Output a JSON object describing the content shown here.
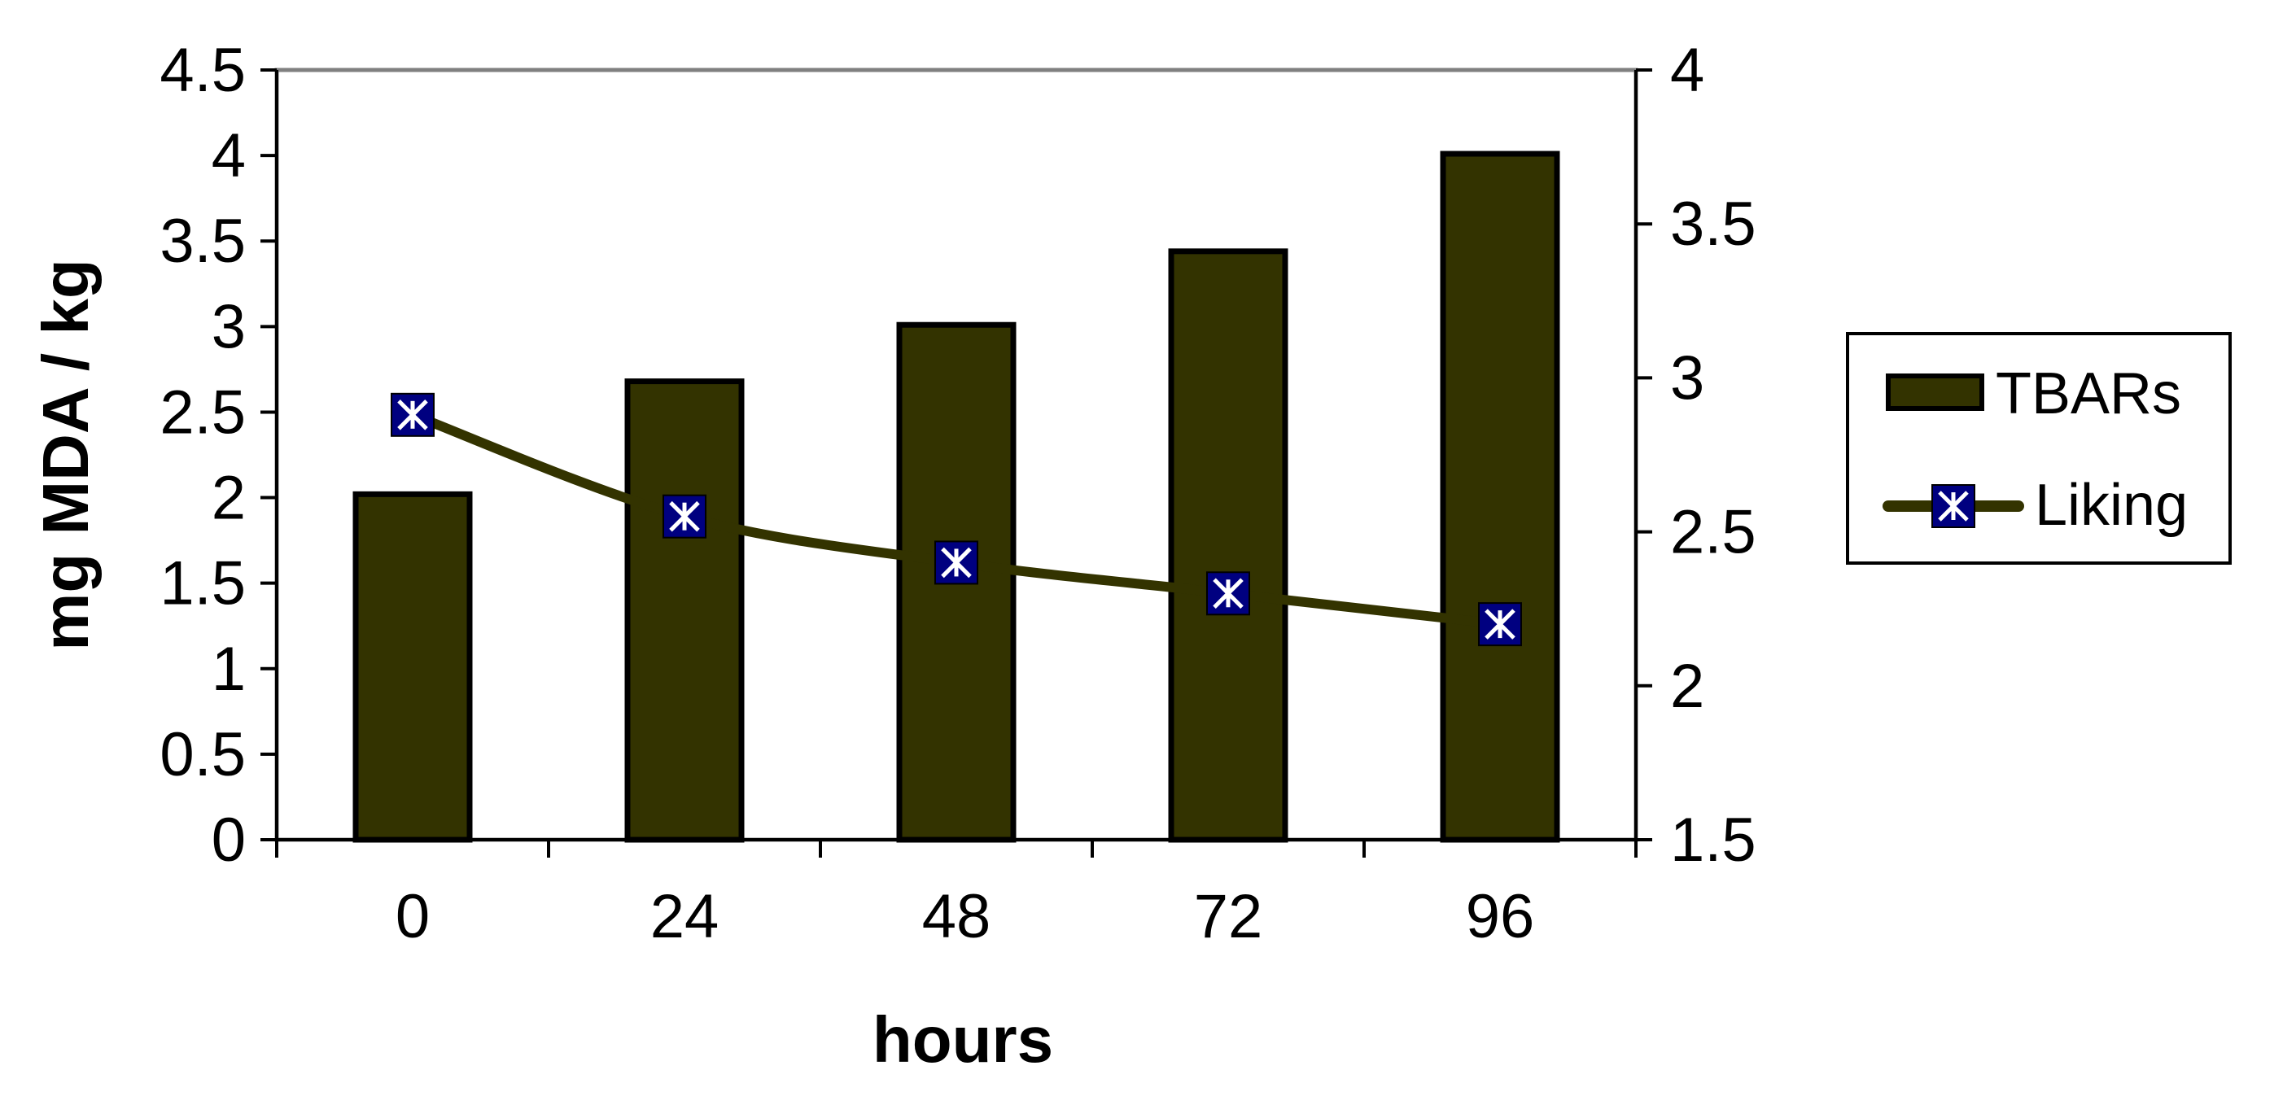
{
  "chart_data": {
    "type": "bar",
    "categories": [
      "0",
      "24",
      "48",
      "72",
      "96"
    ],
    "xlabel": "hours",
    "ylabel": "mg MDA / kg",
    "y_left": {
      "min": 0,
      "max": 4.5,
      "ticks": [
        "0",
        "0.5",
        "1",
        "1.5",
        "2",
        "2.5",
        "3",
        "3.5",
        "4",
        "4.5"
      ]
    },
    "y_right": {
      "min": 1.5,
      "max": 4,
      "ticks": [
        "1.5",
        "2",
        "2.5",
        "3",
        "3.5",
        "4"
      ]
    },
    "grid": false,
    "legend_position": "right",
    "series": [
      {
        "name": "TBARs",
        "kind": "bar",
        "axis": "left",
        "color": "#333300",
        "values": [
          2.02,
          2.68,
          3.01,
          3.44,
          4.01
        ]
      },
      {
        "name": "Liking",
        "kind": "line",
        "axis": "right",
        "color": "#333300",
        "marker": "square-asterisk",
        "marker_color": "#000080",
        "values": [
          2.88,
          2.55,
          2.4,
          2.3,
          2.2
        ]
      }
    ]
  }
}
